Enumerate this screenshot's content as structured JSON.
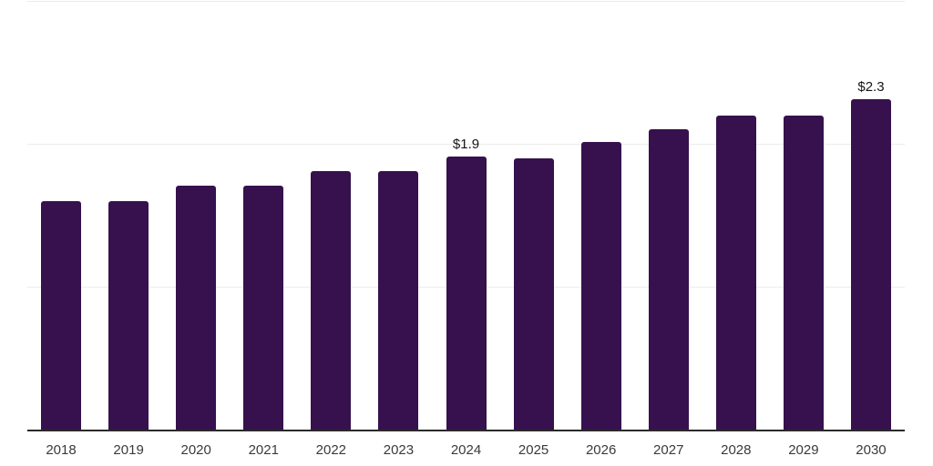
{
  "chart_data": {
    "type": "bar",
    "categories": [
      "2018",
      "2019",
      "2020",
      "2021",
      "2022",
      "2023",
      "2024",
      "2025",
      "2026",
      "2027",
      "2028",
      "2029",
      "2030"
    ],
    "values": [
      1.6,
      1.6,
      1.71,
      1.71,
      1.81,
      1.81,
      1.91,
      1.9,
      2.01,
      2.1,
      2.2,
      2.2,
      2.31
    ],
    "point_labels": [
      "",
      "",
      "",
      "",
      "",
      "",
      "$1.9",
      "",
      "",
      "",
      "",
      "",
      "$2.3"
    ],
    "unit_prefix": "$",
    "ylim": [
      0,
      3
    ],
    "gridline_values": [
      1,
      2,
      3
    ],
    "grid": true,
    "legend": false,
    "x_axis_visible": true,
    "y_axis_labels_visible": false,
    "colors": {
      "bar": "#36114D",
      "grid": "#ececec",
      "axis": "#2a2a2a",
      "value_label": "#141414",
      "tick_label": "#3a3a3a",
      "background": "#ffffff"
    }
  }
}
